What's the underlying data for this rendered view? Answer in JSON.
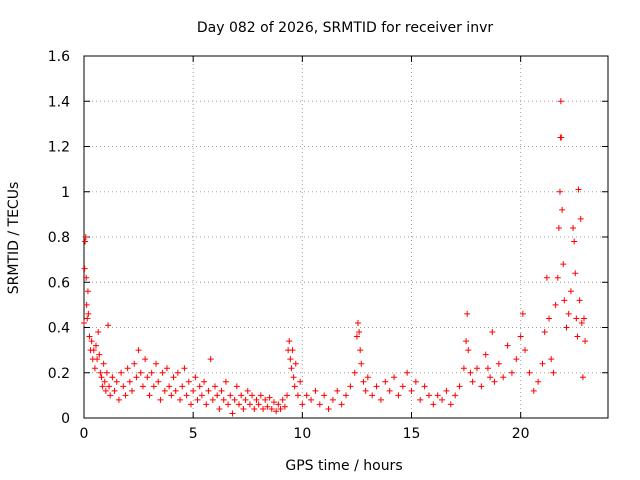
{
  "chart_data": {
    "type": "scatter",
    "title": "Day 082 of 2026, SRMTID for receiver invr",
    "xlabel": "GPS time / hours",
    "ylabel": "SRMTID / TECUs",
    "xlim": [
      0,
      24
    ],
    "ylim": [
      0,
      1.6
    ],
    "x_ticks": [
      0,
      5,
      10,
      15,
      20
    ],
    "x_tick_labels": [
      "0",
      "5",
      "10",
      "15",
      "20"
    ],
    "y_ticks": [
      0,
      0.2,
      0.4,
      0.6,
      0.8,
      1.0,
      1.2,
      1.4,
      1.6
    ],
    "y_tick_labels": [
      "0",
      "0.2",
      "0.4",
      "0.6",
      "0.8",
      "1",
      "1.2",
      "1.4",
      "1.6"
    ],
    "grid": true,
    "marker": "+",
    "series": [
      {
        "name": "SRMTID",
        "color": "#ff0000",
        "points": [
          [
            0.0,
            0.42
          ],
          [
            0.03,
            0.66
          ],
          [
            0.05,
            0.78
          ],
          [
            0.08,
            0.8
          ],
          [
            0.1,
            0.62
          ],
          [
            0.12,
            0.5
          ],
          [
            0.15,
            0.44
          ],
          [
            0.18,
            0.56
          ],
          [
            0.2,
            0.46
          ],
          [
            0.25,
            0.36
          ],
          [
            0.3,
            0.3
          ],
          [
            0.35,
            0.34
          ],
          [
            0.4,
            0.26
          ],
          [
            0.45,
            0.3
          ],
          [
            0.5,
            0.22
          ],
          [
            0.55,
            0.32
          ],
          [
            0.6,
            0.26
          ],
          [
            0.65,
            0.38
          ],
          [
            0.7,
            0.28
          ],
          [
            0.75,
            0.2
          ],
          [
            0.8,
            0.18
          ],
          [
            0.85,
            0.14
          ],
          [
            0.9,
            0.24
          ],
          [
            0.95,
            0.16
          ],
          [
            1.0,
            0.12
          ],
          [
            1.05,
            0.2
          ],
          [
            1.1,
            0.41
          ],
          [
            1.15,
            0.14
          ],
          [
            1.2,
            0.1
          ],
          [
            1.3,
            0.18
          ],
          [
            1.4,
            0.12
          ],
          [
            1.5,
            0.16
          ],
          [
            1.6,
            0.08
          ],
          [
            1.7,
            0.2
          ],
          [
            1.8,
            0.14
          ],
          [
            1.9,
            0.1
          ],
          [
            2.0,
            0.22
          ],
          [
            2.1,
            0.16
          ],
          [
            2.2,
            0.12
          ],
          [
            2.3,
            0.24
          ],
          [
            2.4,
            0.18
          ],
          [
            2.5,
            0.3
          ],
          [
            2.6,
            0.2
          ],
          [
            2.7,
            0.14
          ],
          [
            2.8,
            0.26
          ],
          [
            2.9,
            0.18
          ],
          [
            3.0,
            0.1
          ],
          [
            3.1,
            0.2
          ],
          [
            3.2,
            0.14
          ],
          [
            3.3,
            0.24
          ],
          [
            3.4,
            0.16
          ],
          [
            3.5,
            0.08
          ],
          [
            3.6,
            0.2
          ],
          [
            3.7,
            0.12
          ],
          [
            3.8,
            0.22
          ],
          [
            3.9,
            0.14
          ],
          [
            4.0,
            0.1
          ],
          [
            4.1,
            0.18
          ],
          [
            4.2,
            0.12
          ],
          [
            4.3,
            0.2
          ],
          [
            4.4,
            0.08
          ],
          [
            4.5,
            0.14
          ],
          [
            4.6,
            0.22
          ],
          [
            4.7,
            0.1
          ],
          [
            4.8,
            0.16
          ],
          [
            4.9,
            0.06
          ],
          [
            5.0,
            0.12
          ],
          [
            5.1,
            0.18
          ],
          [
            5.2,
            0.08
          ],
          [
            5.3,
            0.14
          ],
          [
            5.4,
            0.1
          ],
          [
            5.5,
            0.16
          ],
          [
            5.6,
            0.06
          ],
          [
            5.7,
            0.12
          ],
          [
            5.8,
            0.26
          ],
          [
            5.9,
            0.08
          ],
          [
            6.0,
            0.14
          ],
          [
            6.1,
            0.1
          ],
          [
            6.2,
            0.04
          ],
          [
            6.3,
            0.12
          ],
          [
            6.4,
            0.08
          ],
          [
            6.5,
            0.16
          ],
          [
            6.6,
            0.06
          ],
          [
            6.7,
            0.1
          ],
          [
            6.8,
            0.02
          ],
          [
            6.9,
            0.08
          ],
          [
            7.0,
            0.14
          ],
          [
            7.1,
            0.06
          ],
          [
            7.2,
            0.1
          ],
          [
            7.3,
            0.04
          ],
          [
            7.4,
            0.08
          ],
          [
            7.5,
            0.12
          ],
          [
            7.6,
            0.06
          ],
          [
            7.7,
            0.1
          ],
          [
            7.8,
            0.04
          ],
          [
            7.9,
            0.08
          ],
          [
            8.0,
            0.06
          ],
          [
            8.1,
            0.1
          ],
          [
            8.2,
            0.04
          ],
          [
            8.3,
            0.08
          ],
          [
            8.4,
            0.05
          ],
          [
            8.5,
            0.09
          ],
          [
            8.6,
            0.04
          ],
          [
            8.7,
            0.07
          ],
          [
            8.8,
            0.03
          ],
          [
            8.9,
            0.06
          ],
          [
            9.0,
            0.04
          ],
          [
            9.1,
            0.08
          ],
          [
            9.2,
            0.05
          ],
          [
            9.3,
            0.1
          ],
          [
            9.35,
            0.3
          ],
          [
            9.4,
            0.34
          ],
          [
            9.45,
            0.26
          ],
          [
            9.5,
            0.22
          ],
          [
            9.55,
            0.3
          ],
          [
            9.6,
            0.18
          ],
          [
            9.65,
            0.14
          ],
          [
            9.7,
            0.24
          ],
          [
            9.8,
            0.1
          ],
          [
            9.9,
            0.16
          ],
          [
            10.0,
            0.06
          ],
          [
            10.2,
            0.1
          ],
          [
            10.4,
            0.08
          ],
          [
            10.6,
            0.12
          ],
          [
            10.8,
            0.06
          ],
          [
            11.0,
            0.1
          ],
          [
            11.2,
            0.04
          ],
          [
            11.4,
            0.08
          ],
          [
            11.6,
            0.12
          ],
          [
            11.8,
            0.06
          ],
          [
            12.0,
            0.1
          ],
          [
            12.2,
            0.14
          ],
          [
            12.4,
            0.2
          ],
          [
            12.5,
            0.36
          ],
          [
            12.55,
            0.42
          ],
          [
            12.6,
            0.38
          ],
          [
            12.65,
            0.3
          ],
          [
            12.7,
            0.24
          ],
          [
            12.8,
            0.16
          ],
          [
            12.9,
            0.12
          ],
          [
            13.0,
            0.18
          ],
          [
            13.2,
            0.1
          ],
          [
            13.4,
            0.14
          ],
          [
            13.6,
            0.08
          ],
          [
            13.8,
            0.16
          ],
          [
            14.0,
            0.12
          ],
          [
            14.2,
            0.18
          ],
          [
            14.4,
            0.1
          ],
          [
            14.6,
            0.14
          ],
          [
            14.8,
            0.2
          ],
          [
            15.0,
            0.12
          ],
          [
            15.2,
            0.16
          ],
          [
            15.4,
            0.08
          ],
          [
            15.6,
            0.14
          ],
          [
            15.8,
            0.1
          ],
          [
            16.0,
            0.06
          ],
          [
            16.2,
            0.1
          ],
          [
            16.4,
            0.08
          ],
          [
            16.6,
            0.12
          ],
          [
            16.8,
            0.06
          ],
          [
            17.0,
            0.1
          ],
          [
            17.2,
            0.14
          ],
          [
            17.4,
            0.22
          ],
          [
            17.5,
            0.34
          ],
          [
            17.55,
            0.46
          ],
          [
            17.6,
            0.3
          ],
          [
            17.7,
            0.2
          ],
          [
            17.8,
            0.16
          ],
          [
            18.0,
            0.22
          ],
          [
            18.2,
            0.14
          ],
          [
            18.4,
            0.28
          ],
          [
            18.5,
            0.22
          ],
          [
            18.6,
            0.18
          ],
          [
            18.7,
            0.38
          ],
          [
            18.8,
            0.16
          ],
          [
            19.0,
            0.24
          ],
          [
            19.2,
            0.18
          ],
          [
            19.4,
            0.32
          ],
          [
            19.6,
            0.2
          ],
          [
            19.8,
            0.26
          ],
          [
            20.0,
            0.36
          ],
          [
            20.1,
            0.46
          ],
          [
            20.2,
            0.3
          ],
          [
            20.4,
            0.2
          ],
          [
            20.6,
            0.12
          ],
          [
            20.8,
            0.16
          ],
          [
            21.0,
            0.24
          ],
          [
            21.1,
            0.38
          ],
          [
            21.2,
            0.62
          ],
          [
            21.3,
            0.44
          ],
          [
            21.4,
            0.26
          ],
          [
            21.5,
            0.2
          ],
          [
            21.6,
            0.5
          ],
          [
            21.7,
            0.62
          ],
          [
            21.75,
            0.84
          ],
          [
            21.8,
            1.0
          ],
          [
            21.82,
            1.24
          ],
          [
            21.84,
            1.4
          ],
          [
            21.86,
            1.24
          ],
          [
            21.9,
            0.92
          ],
          [
            21.95,
            0.68
          ],
          [
            22.0,
            0.52
          ],
          [
            22.1,
            0.4
          ],
          [
            22.2,
            0.46
          ],
          [
            22.3,
            0.56
          ],
          [
            22.4,
            0.84
          ],
          [
            22.45,
            0.78
          ],
          [
            22.5,
            0.64
          ],
          [
            22.55,
            0.44
          ],
          [
            22.6,
            0.36
          ],
          [
            22.65,
            1.01
          ],
          [
            22.7,
            0.52
          ],
          [
            22.75,
            0.88
          ],
          [
            22.8,
            0.42
          ],
          [
            22.85,
            0.18
          ],
          [
            22.9,
            0.44
          ],
          [
            22.95,
            0.34
          ]
        ]
      }
    ]
  }
}
